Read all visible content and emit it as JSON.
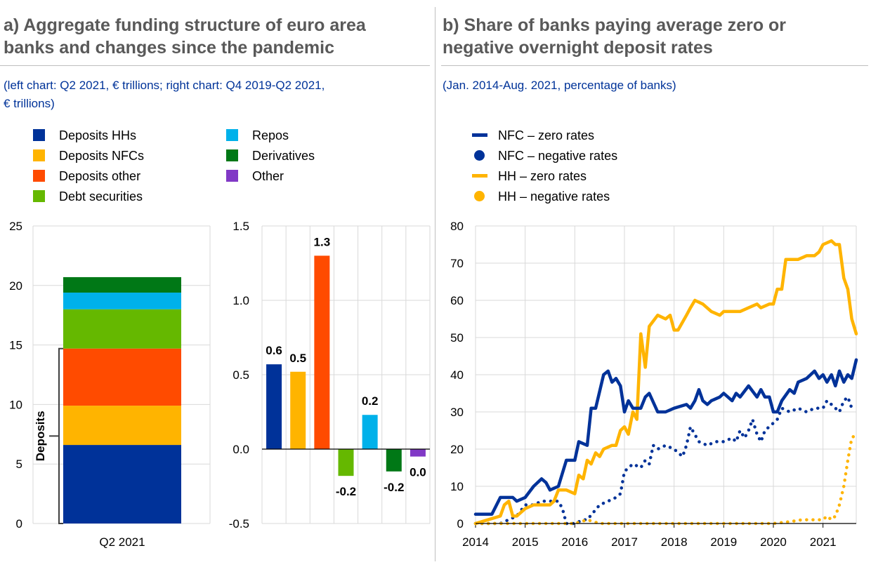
{
  "panel_a": {
    "title_line1": "a) Aggregate funding structure of euro area",
    "title_line2": "banks and changes since the pandemic",
    "subtitle_line1": "(left chart: Q2 2021, € trillions; right chart: Q4 2019-Q2 2021,",
    "subtitle_line2": "€ trillions)",
    "legend": [
      {
        "label": "Deposits HHs",
        "color": "#003299"
      },
      {
        "label": "Deposits NFCs",
        "color": "#FFB400"
      },
      {
        "label": "Deposits other",
        "color": "#FF4B00"
      },
      {
        "label": "Debt securities",
        "color": "#65B800"
      },
      {
        "label": "Repos",
        "color": "#00B1EA"
      },
      {
        "label": "Derivatives",
        "color": "#007816"
      },
      {
        "label": "Other",
        "color": "#8139C6"
      }
    ]
  },
  "panel_b": {
    "title_line1": "b) Share of banks paying average zero or",
    "title_line2": "negative overnight deposit rates",
    "subtitle": "(Jan. 2014-Aug. 2021, percentage of banks)",
    "legend": [
      {
        "label": "NFC – zero rates",
        "color": "#003299",
        "marker": "line"
      },
      {
        "label": "NFC – negative rates",
        "color": "#003299",
        "marker": "dot"
      },
      {
        "label": "HH – zero rates",
        "color": "#FFB400",
        "marker": "line"
      },
      {
        "label": "HH – negative rates",
        "color": "#FFB400",
        "marker": "dot"
      }
    ]
  },
  "chart_data": [
    {
      "type": "bar",
      "stacked": true,
      "title": "Aggregate funding structure of euro area banks",
      "categories": [
        "Q2 2021"
      ],
      "ylim": [
        0,
        25
      ],
      "yticks": [
        0,
        5,
        10,
        15,
        20,
        25
      ],
      "bracket_label": "Deposits",
      "series": [
        {
          "name": "Deposits HHs",
          "color": "#003299",
          "values": [
            6.6
          ]
        },
        {
          "name": "Deposits NFCs",
          "color": "#FFB400",
          "values": [
            3.3
          ]
        },
        {
          "name": "Deposits other",
          "color": "#FF4B00",
          "values": [
            4.8
          ]
        },
        {
          "name": "Debt securities",
          "color": "#65B800",
          "values": [
            3.3
          ]
        },
        {
          "name": "Repos",
          "color": "#00B1EA",
          "values": [
            1.4
          ]
        },
        {
          "name": "Derivatives",
          "color": "#007816",
          "values": [
            1.3
          ]
        }
      ]
    },
    {
      "type": "bar",
      "title": "Changes since the pandemic",
      "categories": [
        "Deposits HHs",
        "Deposits NFCs",
        "Deposits other",
        "Debt securities",
        "Repos",
        "Derivatives",
        "Other"
      ],
      "values": [
        0.57,
        0.52,
        1.3,
        -0.18,
        0.23,
        -0.15,
        -0.05
      ],
      "labels": [
        "0.6",
        "0.5",
        "1.3",
        "-0.2",
        "0.2",
        "-0.2",
        "0.0"
      ],
      "colors": [
        "#003299",
        "#FFB400",
        "#FF4B00",
        "#65B800",
        "#00B1EA",
        "#007816",
        "#8139C6"
      ],
      "ylim": [
        -0.5,
        1.5
      ],
      "yticks": [
        "-0.5",
        "0.0",
        "0.5",
        "1.0",
        "1.5"
      ]
    },
    {
      "type": "line",
      "title": "Share of banks paying average zero or negative overnight deposit rates",
      "xlim": [
        2014,
        2021.67
      ],
      "ylim": [
        0,
        80
      ],
      "xticks": [
        "2014",
        "2015",
        "2016",
        "2017",
        "2018",
        "2019",
        "2020",
        "2021"
      ],
      "yticks": [
        "0",
        "10",
        "20",
        "30",
        "40",
        "50",
        "60",
        "70",
        "80"
      ],
      "series": [
        {
          "name": "NFC – zero rates",
          "color": "#003299",
          "style": "solid",
          "x": [
            2014,
            2014.25,
            2014.33,
            2014.5,
            2014.75,
            2014.83,
            2015,
            2015.17,
            2015.33,
            2015.42,
            2015.5,
            2015.67,
            2015.83,
            2016,
            2016.08,
            2016.25,
            2016.33,
            2016.42,
            2016.58,
            2016.67,
            2016.75,
            2016.83,
            2016.92,
            2017,
            2017.08,
            2017.17,
            2017.33,
            2017.42,
            2017.5,
            2017.67,
            2017.83,
            2018,
            2018.25,
            2018.33,
            2018.42,
            2018.5,
            2018.58,
            2018.67,
            2018.75,
            2018.92,
            2019,
            2019.17,
            2019.25,
            2019.33,
            2019.5,
            2019.67,
            2019.75,
            2019.83,
            2019.92,
            2020,
            2020.08,
            2020.17,
            2020.33,
            2020.42,
            2020.5,
            2020.67,
            2020.75,
            2020.83,
            2020.92,
            2021,
            2021.08,
            2021.17,
            2021.25,
            2021.33,
            2021.42,
            2021.5,
            2021.58,
            2021.67
          ],
          "y": [
            2.5,
            2.5,
            2.5,
            7,
            7,
            6,
            7,
            10,
            12,
            11,
            9,
            10,
            17,
            17,
            22,
            21,
            31,
            31,
            40,
            41,
            38,
            39,
            37,
            30,
            33,
            31,
            31,
            34,
            35,
            30,
            30,
            31,
            32,
            31,
            33,
            36,
            33,
            32,
            33,
            34,
            35,
            33,
            35,
            34,
            37,
            34,
            36,
            34,
            34,
            30,
            30,
            33,
            36,
            35,
            38,
            39,
            40,
            41,
            39,
            40,
            38,
            40,
            37,
            41,
            38,
            40,
            39,
            44
          ]
        },
        {
          "name": "NFC – negative rates",
          "color": "#003299",
          "style": "dotted",
          "x": [
            2014,
            2014.5,
            2014.83,
            2015,
            2015.17,
            2015.33,
            2015.5,
            2015.67,
            2015.75,
            2015.83,
            2016,
            2016.17,
            2016.25,
            2016.5,
            2016.67,
            2016.83,
            2016.92,
            2017,
            2017.17,
            2017.33,
            2017.42,
            2017.5,
            2017.58,
            2017.67,
            2017.83,
            2018,
            2018.17,
            2018.25,
            2018.33,
            2018.5,
            2018.67,
            2018.83,
            2019,
            2019.17,
            2019.25,
            2019.33,
            2019.42,
            2019.5,
            2019.58,
            2019.67,
            2019.75,
            2019.83,
            2020,
            2020.08,
            2020.17,
            2020.33,
            2020.5,
            2020.67,
            2020.83,
            2021,
            2021.08,
            2021.17,
            2021.25,
            2021.33,
            2021.42,
            2021.5,
            2021.58
          ],
          "y": [
            0,
            0,
            2,
            5,
            5,
            6,
            6,
            6,
            4,
            0,
            0,
            1,
            1,
            5,
            6,
            7,
            8,
            14,
            16,
            15,
            17,
            16,
            21,
            20,
            21,
            20,
            18,
            21,
            26,
            22,
            21,
            22,
            22,
            23,
            22,
            25,
            23,
            25,
            28,
            24,
            22,
            25,
            27,
            28,
            31,
            30,
            31,
            30,
            31,
            31,
            33,
            32,
            31,
            30,
            33,
            34,
            31
          ]
        },
        {
          "name": "HH – zero rates",
          "color": "#FFB400",
          "style": "solid",
          "x": [
            2014,
            2014.25,
            2014.5,
            2014.58,
            2014.67,
            2014.75,
            2014.83,
            2015,
            2015.17,
            2015.33,
            2015.5,
            2015.58,
            2015.67,
            2015.83,
            2016,
            2016.08,
            2016.17,
            2016.25,
            2016.33,
            2016.42,
            2016.5,
            2016.58,
            2016.75,
            2016.83,
            2016.92,
            2017,
            2017.08,
            2017.17,
            2017.25,
            2017.33,
            2017.42,
            2017.5,
            2017.67,
            2017.83,
            2017.92,
            2018,
            2018.08,
            2018.25,
            2018.33,
            2018.42,
            2018.58,
            2018.75,
            2018.92,
            2019,
            2019.25,
            2019.33,
            2019.5,
            2019.67,
            2019.75,
            2019.92,
            2020,
            2020.08,
            2020.17,
            2020.25,
            2020.42,
            2020.5,
            2020.67,
            2020.75,
            2020.83,
            2020.92,
            2021,
            2021.17,
            2021.25,
            2021.33,
            2021.42,
            2021.5,
            2021.58,
            2021.67
          ],
          "y": [
            0,
            1,
            2,
            5,
            6,
            2,
            2,
            4,
            5,
            5,
            5,
            6,
            9,
            9,
            8,
            13,
            12,
            17,
            16,
            19,
            18,
            20,
            21,
            21,
            25,
            26,
            24,
            30,
            28,
            51,
            42,
            53,
            56,
            55,
            56,
            52,
            52,
            56,
            58,
            60,
            59,
            57,
            56,
            57,
            57,
            57,
            58,
            59,
            58,
            59,
            59,
            63,
            63,
            71,
            71,
            71,
            72,
            72,
            72,
            73,
            75,
            76,
            75,
            75,
            66,
            63,
            55,
            51
          ]
        },
        {
          "name": "HH – negative rates",
          "color": "#FFB400",
          "style": "dotted",
          "x": [
            2014,
            2014.5,
            2015,
            2015.5,
            2016,
            2016.25,
            2016.5,
            2017,
            2017.5,
            2018,
            2018.5,
            2019,
            2019.5,
            2020,
            2020.33,
            2020.58,
            2020.83,
            2021,
            2021.08,
            2021.17,
            2021.25,
            2021.33,
            2021.42,
            2021.5,
            2021.58,
            2021.67
          ],
          "y": [
            0,
            0,
            0,
            0,
            0,
            1,
            0,
            0,
            0,
            0,
            0,
            0,
            0,
            0,
            0.5,
            1,
            1,
            1,
            2,
            1,
            2,
            5,
            10,
            17,
            23,
            24
          ]
        }
      ]
    }
  ]
}
